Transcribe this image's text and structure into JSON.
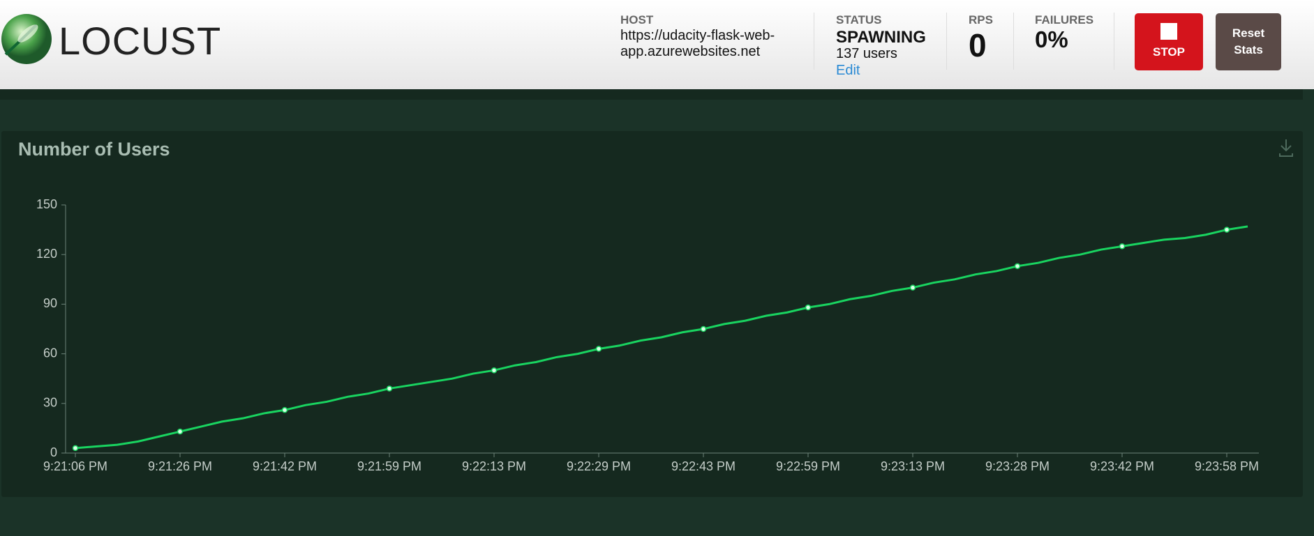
{
  "header": {
    "logo": "LOCUST",
    "host_label": "HOST",
    "host": "https://udacity-flask-web-app.azurewebsites.net",
    "status_label": "STATUS",
    "status": "SPAWNING",
    "users": "137 users",
    "edit": "Edit",
    "rps_label": "RPS",
    "rps": "0",
    "failures_label": "FAILURES",
    "failures": "0%",
    "stop": "STOP",
    "reset": "Reset Stats"
  },
  "chart_data": {
    "type": "line",
    "title": "Number of Users",
    "color": "#19d460",
    "categories": [
      "9:21:06 PM",
      null,
      null,
      null,
      null,
      "9:21:26 PM",
      null,
      null,
      null,
      null,
      "9:21:42 PM",
      null,
      null,
      null,
      null,
      "9:21:59 PM",
      null,
      null,
      null,
      null,
      "9:22:13 PM",
      null,
      null,
      null,
      null,
      "9:22:29 PM",
      null,
      null,
      null,
      null,
      "9:22:43 PM",
      null,
      null,
      null,
      null,
      "9:22:59 PM",
      null,
      null,
      null,
      null,
      "9:23:13 PM",
      null,
      null,
      null,
      null,
      "9:23:28 PM",
      null,
      null,
      null,
      null,
      "9:23:42 PM",
      null,
      null,
      null,
      null,
      "9:23:58 PM",
      null
    ],
    "values": [
      3,
      4,
      5,
      7,
      10,
      13,
      16,
      19,
      21,
      24,
      26,
      29,
      31,
      34,
      36,
      39,
      41,
      43,
      45,
      48,
      50,
      53,
      55,
      58,
      60,
      63,
      65,
      68,
      70,
      73,
      75,
      78,
      80,
      83,
      85,
      88,
      90,
      93,
      95,
      98,
      100,
      103,
      105,
      108,
      110,
      113,
      115,
      118,
      120,
      123,
      125,
      127,
      129,
      130,
      132,
      135,
      137
    ],
    "ylim": [
      0,
      150
    ],
    "yticks": [
      0,
      30,
      60,
      90,
      120,
      150
    ]
  }
}
